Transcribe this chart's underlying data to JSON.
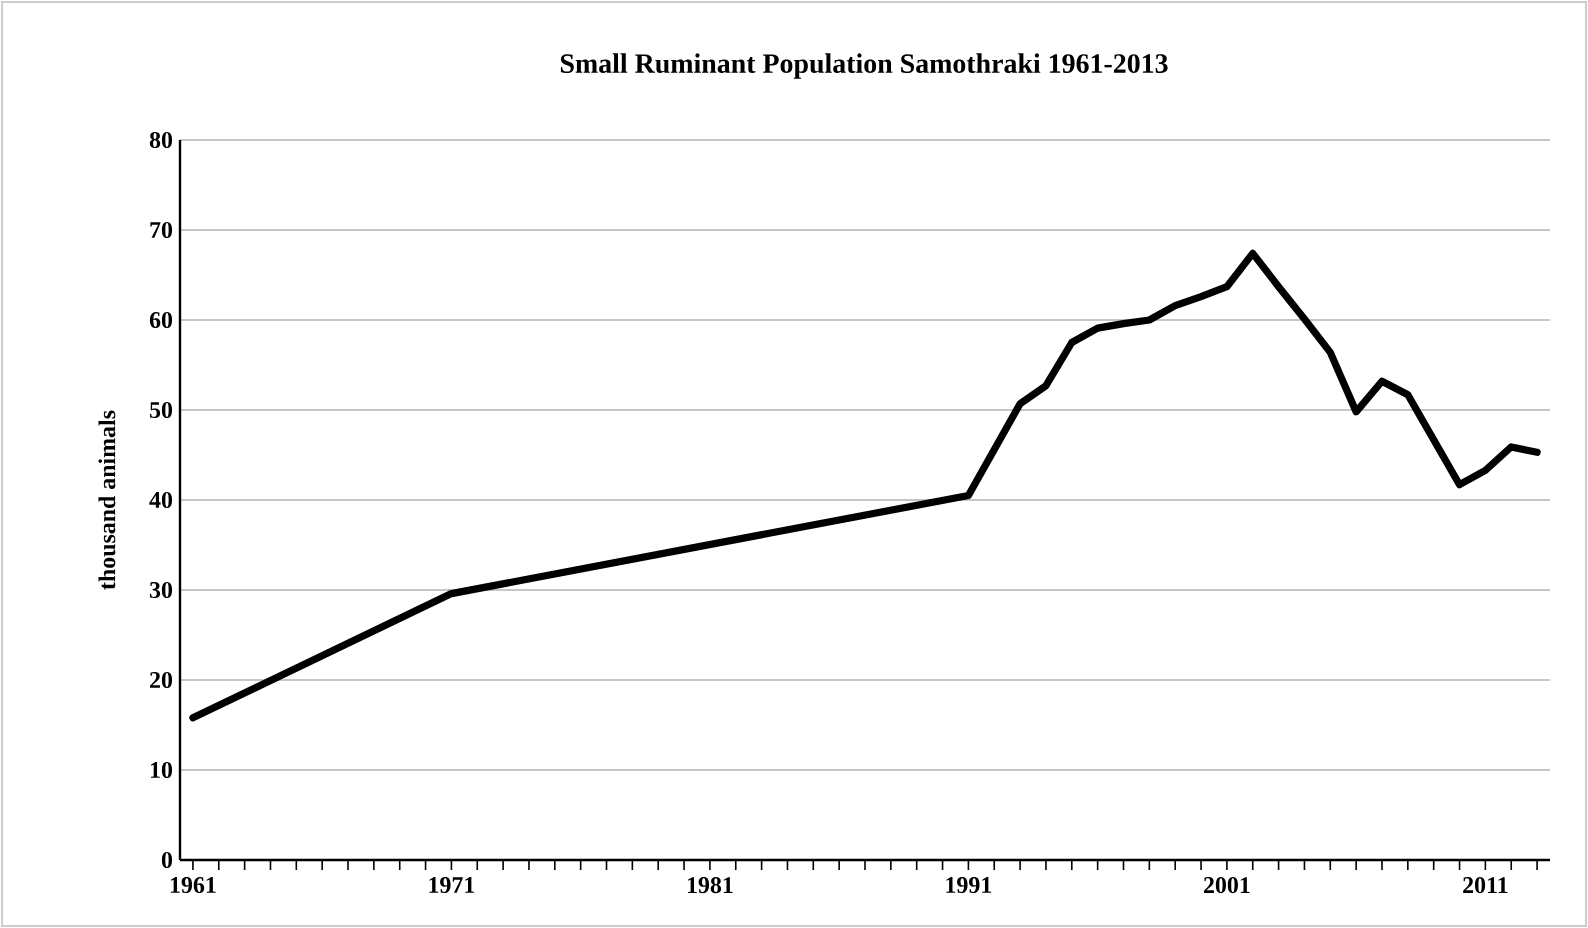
{
  "chart_data": {
    "type": "line",
    "title": "Small Ruminant Population Samothraki 1961-2013",
    "ylabel": "thousand animals",
    "x": [
      1961,
      1971,
      1991,
      1993,
      1994,
      1995,
      1996,
      1997,
      1998,
      1999,
      2000,
      2001,
      2002,
      2003,
      2004,
      2005,
      2006,
      2007,
      2008,
      2009,
      2010,
      2011,
      2012,
      2013
    ],
    "series": [
      {
        "color": "#000000",
        "values": [
          15.8,
          29.6,
          40.5,
          50.7,
          52.7,
          57.5,
          59.1,
          59.6,
          60.0,
          61.6,
          62.6,
          63.7,
          67.4,
          63.7,
          60.1,
          56.4,
          49.8,
          53.2,
          51.7,
          46.7,
          41.7,
          43.3,
          45.9,
          45.3
        ]
      }
    ],
    "xlim": [
      1960.5,
      2013.5
    ],
    "xticks": [
      1961,
      {
        "value": 1962,
        "label": null
      },
      {
        "value": 1963,
        "label": null
      },
      {
        "value": 1964,
        "label": null
      },
      {
        "value": 1965,
        "label": null
      },
      {
        "value": 1966,
        "label": null
      },
      {
        "value": 1967,
        "label": null
      },
      {
        "value": 1968,
        "label": null
      },
      {
        "value": 1969,
        "label": null
      },
      {
        "value": 1970,
        "label": null
      },
      1971,
      {
        "value": 1972,
        "label": null
      },
      {
        "value": 1973,
        "label": null
      },
      {
        "value": 1974,
        "label": null
      },
      {
        "value": 1975,
        "label": null
      },
      {
        "value": 1976,
        "label": null
      },
      {
        "value": 1977,
        "label": null
      },
      {
        "value": 1978,
        "label": null
      },
      {
        "value": 1979,
        "label": null
      },
      {
        "value": 1980,
        "label": null
      },
      1981,
      {
        "value": 1982,
        "label": null
      },
      {
        "value": 1983,
        "label": null
      },
      {
        "value": 1984,
        "label": null
      },
      {
        "value": 1985,
        "label": null
      },
      {
        "value": 1986,
        "label": null
      },
      {
        "value": 1987,
        "label": null
      },
      {
        "value": 1988,
        "label": null
      },
      {
        "value": 1989,
        "label": null
      },
      {
        "value": 1990,
        "label": null
      },
      1991,
      {
        "value": 1992,
        "label": null
      },
      {
        "value": 1993,
        "label": null
      },
      {
        "value": 1994,
        "label": null
      },
      {
        "value": 1995,
        "label": null
      },
      {
        "value": 1996,
        "label": null
      },
      {
        "value": 1997,
        "label": null
      },
      {
        "value": 1998,
        "label": null
      },
      {
        "value": 1999,
        "label": null
      },
      {
        "value": 2000,
        "label": null
      },
      2001,
      {
        "value": 2002,
        "label": null
      },
      {
        "value": 2003,
        "label": null
      },
      {
        "value": 2004,
        "label": null
      },
      {
        "value": 2005,
        "label": null
      },
      {
        "value": 2006,
        "label": null
      },
      {
        "value": 2007,
        "label": null
      },
      {
        "value": 2008,
        "label": null
      },
      {
        "value": 2009,
        "label": null
      },
      {
        "value": 2010,
        "label": null
      },
      2011,
      {
        "value": 2012,
        "label": null
      },
      {
        "value": 2013,
        "label": null
      }
    ],
    "ylim": [
      0,
      80
    ],
    "yticks": [
      0,
      10,
      20,
      30,
      40,
      50,
      60,
      70,
      80
    ],
    "grid": "y",
    "legend": false,
    "marker": "none",
    "line_style": "solid"
  }
}
